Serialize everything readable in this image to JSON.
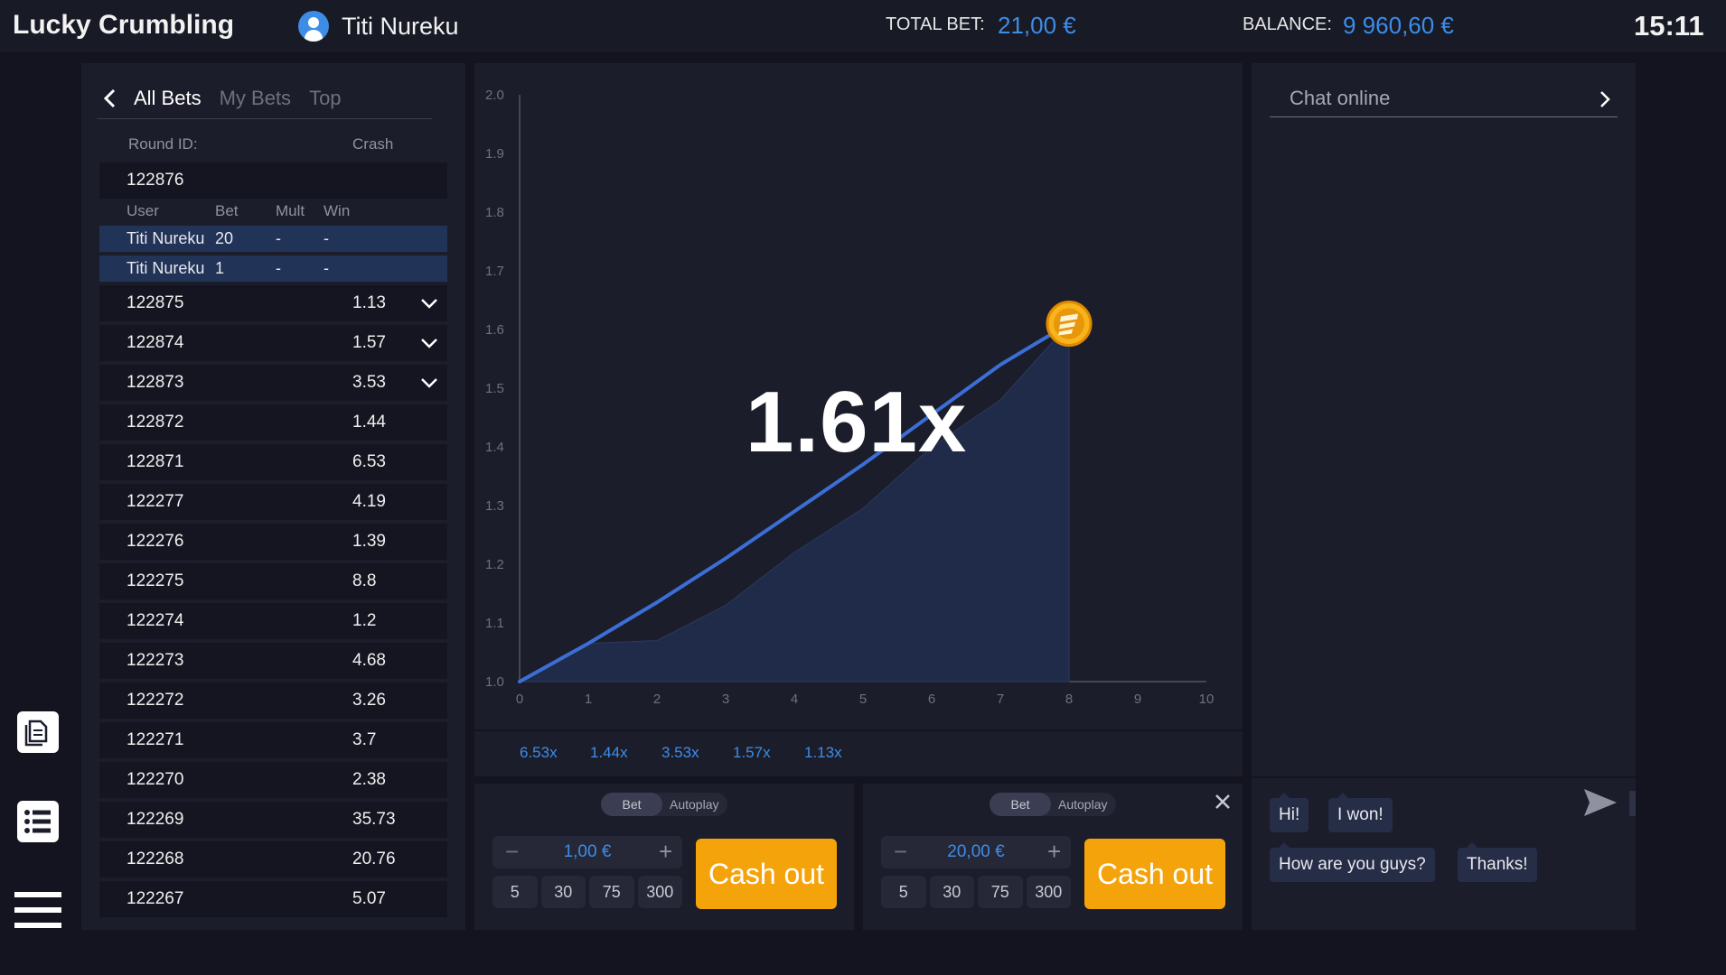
{
  "header": {
    "app_title": "Lucky Crumbling",
    "user_name": "Titi Nureku",
    "total_bet_label": "TOTAL BET:",
    "total_bet_value": "21,00 €",
    "balance_label": "BALANCE:",
    "balance_value": "9 960,60 €",
    "time": "15:11"
  },
  "side_icons": [
    "document-icon",
    "list-icon",
    "menu-icon"
  ],
  "bets": {
    "tabs": [
      "All Bets",
      "My Bets",
      "Top"
    ],
    "active_tab": "All Bets",
    "round_id_header": "Round ID:",
    "crash_header": "Crash",
    "expanded_round": {
      "id": "122876",
      "columns": [
        "User",
        "Bet",
        "Mult",
        "Win"
      ],
      "rows": [
        {
          "user": "Titi Nureku",
          "bet": "20",
          "mult": "-",
          "win": "-"
        },
        {
          "user": "Titi Nureku",
          "bet": "1",
          "mult": "-",
          "win": "-"
        }
      ]
    },
    "rounds": [
      {
        "id": "122875",
        "crash": "1.13",
        "expandable": true
      },
      {
        "id": "122874",
        "crash": "1.57",
        "expandable": true
      },
      {
        "id": "122873",
        "crash": "3.53",
        "expandable": true
      },
      {
        "id": "122872",
        "crash": "1.44",
        "expandable": false
      },
      {
        "id": "122871",
        "crash": "6.53",
        "expandable": false
      },
      {
        "id": "122277",
        "crash": "4.19",
        "expandable": false
      },
      {
        "id": "122276",
        "crash": "1.39",
        "expandable": false
      },
      {
        "id": "122275",
        "crash": "8.8",
        "expandable": false
      },
      {
        "id": "122274",
        "crash": "1.2",
        "expandable": false
      },
      {
        "id": "122273",
        "crash": "4.68",
        "expandable": false
      },
      {
        "id": "122272",
        "crash": "3.26",
        "expandable": false
      },
      {
        "id": "122271",
        "crash": "3.7",
        "expandable": false
      },
      {
        "id": "122270",
        "crash": "2.38",
        "expandable": false
      },
      {
        "id": "122269",
        "crash": "35.73",
        "expandable": false
      },
      {
        "id": "122268",
        "crash": "20.76",
        "expandable": false
      },
      {
        "id": "122267",
        "crash": "5.07",
        "expandable": false
      }
    ]
  },
  "game": {
    "multiplier": "1.61x",
    "history": [
      "6.53x",
      "1.44x",
      "3.53x",
      "1.57x",
      "1.13x"
    ]
  },
  "chart_data": {
    "type": "line",
    "title": "",
    "xlabel": "",
    "ylabel": "",
    "xlim": [
      0,
      10
    ],
    "ylim": [
      1.0,
      2.0
    ],
    "x_ticks": [
      "0",
      "1",
      "2",
      "3",
      "4",
      "5",
      "6",
      "7",
      "8",
      "9",
      "10"
    ],
    "y_ticks": [
      "1.0",
      "1.1",
      "1.2",
      "1.3",
      "1.4",
      "1.5",
      "1.6",
      "1.7",
      "1.8",
      "1.9",
      "2.0"
    ],
    "series": [
      {
        "values_x": [
          0,
          1,
          2,
          3,
          4,
          5,
          6,
          7,
          8
        ],
        "values_y": [
          1.0,
          1.065,
          1.135,
          1.21,
          1.29,
          1.37,
          1.455,
          1.54,
          1.61
        ],
        "color": "#3b6fd6"
      },
      {
        "values_x": [
          0,
          1,
          2,
          3,
          4,
          5,
          6,
          7,
          8
        ],
        "values_y": [
          1.0,
          1.065,
          1.07,
          1.13,
          1.22,
          1.295,
          1.4,
          1.48,
          1.61
        ],
        "color": "#1f2b48",
        "fill": true
      }
    ],
    "marker": {
      "x": 8,
      "y": 1.61,
      "icon": "coin-icon",
      "color": "#f5a30b"
    },
    "grid": false
  },
  "bet_panels": [
    {
      "mode_bet": "Bet",
      "mode_auto": "Autoplay",
      "amount": "1,00 €",
      "quick": [
        "5",
        "30",
        "75",
        "300"
      ],
      "cashout": "Cash out",
      "closable": false
    },
    {
      "mode_bet": "Bet",
      "mode_auto": "Autoplay",
      "amount": "20,00 €",
      "quick": [
        "5",
        "30",
        "75",
        "300"
      ],
      "cashout": "Cash out",
      "closable": true
    }
  ],
  "chat": {
    "title": "Chat online",
    "quick_messages": [
      "Hi!",
      "I won!",
      "How are you guys?",
      "Thanks!"
    ]
  },
  "colors": {
    "accent": "#3d8de6",
    "cashout": "#f5a30b",
    "panel": "#1c1d2a",
    "background": "#13141f"
  }
}
